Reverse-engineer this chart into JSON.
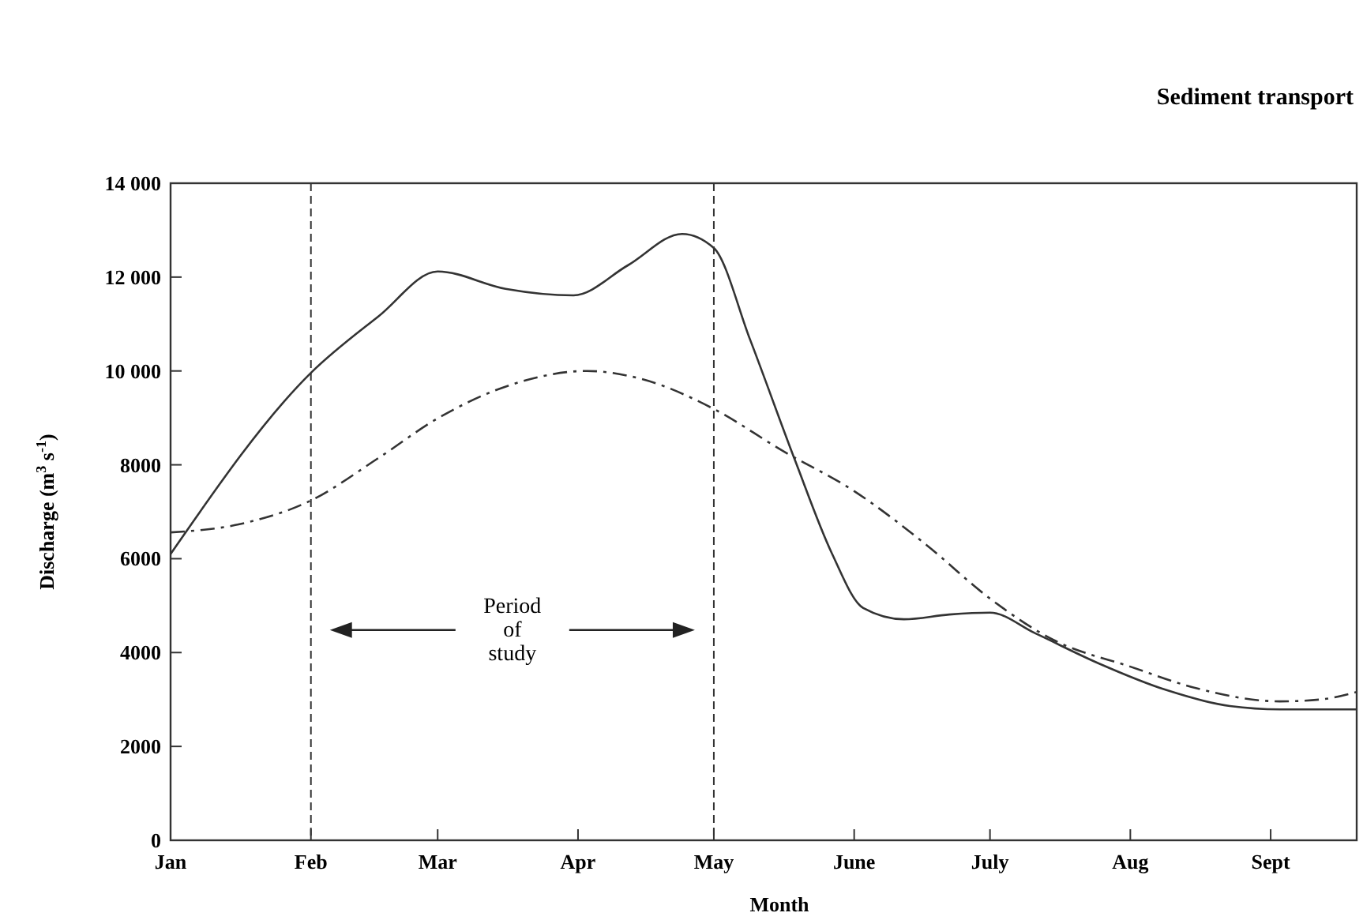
{
  "chart_data": {
    "type": "line",
    "title": "Sediment transport",
    "xlabel": "Month",
    "ylabel": "Discharge (m$^{3}$ s$^{-1}$)",
    "xlim": [
      "--01-01",
      "--09-20"
    ],
    "xticks": [
      {
        "value": "--01-01",
        "label": "Jan"
      },
      {
        "value": "--02-01",
        "label": "Feb"
      },
      {
        "value": "--03-01",
        "label": "Mar"
      },
      {
        "value": "--04-01",
        "label": "Apr"
      },
      {
        "value": "--05-01",
        "label": "May"
      },
      {
        "value": "--06-01",
        "label": "June"
      },
      {
        "value": "--07-01",
        "label": "July"
      },
      {
        "value": "--08-01",
        "label": "Aug"
      },
      {
        "value": "--09-01",
        "label": "Sept"
      }
    ],
    "ylim": [
      0,
      14000
    ],
    "yticks": [
      0,
      2000,
      4000,
      6000,
      8000,
      {
        "value": 10000,
        "label": "10 000"
      },
      {
        "value": 12000,
        "label": "12 000"
      },
      {
        "value": 14000,
        "label": "14 000"
      }
    ],
    "grid": false,
    "marker": "none",
    "series": [
      {
        "color": "#333333",
        "line_style": "solid",
        "x": [
          "--01-01",
          "--02-01",
          "--02-16",
          "--03-01",
          "--03-16",
          "--03-31",
          "--04-12",
          "--04-24",
          "--05-01",
          "--05-09",
          "--05-19",
          "--05-27",
          "--06-03",
          "--06-12",
          "--06-22",
          "--07-01",
          "--07-11",
          "--07-25",
          "--08-09",
          "--08-23",
          "--09-03",
          "--09-20"
        ],
        "values": [
          6100,
          9960,
          11170,
          12120,
          11750,
          11610,
          12250,
          12920,
          12620,
          10670,
          8080,
          6130,
          4950,
          4710,
          4810,
          4850,
          4410,
          3770,
          3200,
          2860,
          2790,
          2790
        ]
      },
      {
        "color": "#333333",
        "line_style": "dashed",
        "x": [
          "--01-01",
          "--01-16",
          "--02-01",
          "--02-16",
          "--03-01",
          "--03-18",
          "--04-03",
          "--04-15",
          "--05-01",
          "--05-16",
          "--06-01",
          "--06-17",
          "--07-01",
          "--07-15",
          "--08-01",
          "--08-16",
          "--09-03",
          "--09-12",
          "--09-20"
        ],
        "values": [
          6560,
          6730,
          7240,
          8150,
          8990,
          9730,
          10000,
          9830,
          9190,
          8310,
          7440,
          6290,
          5150,
          4270,
          3700,
          3230,
          2960,
          3000,
          3160
        ]
      }
    ],
    "ref_lines": [
      {
        "axis": "x",
        "value": "--02-01",
        "color": "#333333",
        "line_style": "dashed"
      },
      {
        "axis": "x",
        "value": "--05-01",
        "color": "#333333",
        "line_style": "dashed"
      }
    ],
    "annotations": [
      "Period of study"
    ]
  }
}
